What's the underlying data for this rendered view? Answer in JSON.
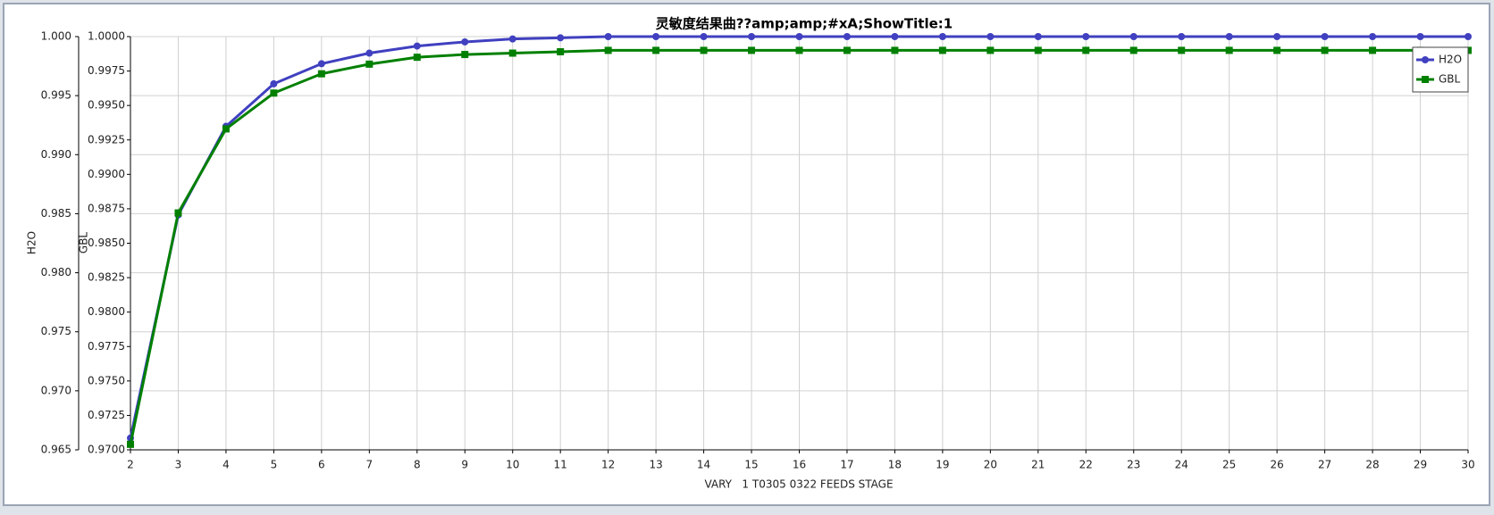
{
  "chart_data": {
    "type": "line",
    "title": "灵敏度结果曲??amp;amp;#xA;ShowTitle:1",
    "x_label": "VARY   1 T0305 0322 FEEDS STAGE",
    "y_label": "H2O",
    "y2_label": "GBL",
    "x": [
      2,
      3,
      4,
      5,
      6,
      7,
      8,
      9,
      10,
      11,
      12,
      13,
      14,
      15,
      16,
      17,
      18,
      19,
      20,
      21,
      22,
      23,
      24,
      25,
      26,
      27,
      28,
      29,
      30
    ],
    "xlim": [
      2,
      30
    ],
    "xticks": [
      2,
      3,
      4,
      5,
      6,
      7,
      8,
      9,
      10,
      11,
      12,
      13,
      14,
      15,
      16,
      17,
      18,
      19,
      20,
      21,
      22,
      23,
      24,
      25,
      26,
      27,
      28,
      29,
      30
    ],
    "ylim": [
      0.965,
      1.0
    ],
    "yticks": [
      {
        "value": 0.965,
        "label": "0.965"
      },
      {
        "value": 0.97,
        "label": "0.970"
      },
      {
        "value": 0.975,
        "label": "0.975"
      },
      {
        "value": 0.98,
        "label": "0.980"
      },
      {
        "value": 0.985,
        "label": "0.985"
      },
      {
        "value": 0.99,
        "label": "0.990"
      },
      {
        "value": 0.995,
        "label": "0.995"
      },
      {
        "value": 1.0,
        "label": "1.000"
      }
    ],
    "y2lim": [
      0.97,
      1.0
    ],
    "y2ticks": [
      {
        "value": 0.97,
        "label": "0.9700"
      },
      {
        "value": 0.9725,
        "label": "0.9725"
      },
      {
        "value": 0.975,
        "label": "0.9750"
      },
      {
        "value": 0.9775,
        "label": "0.9775"
      },
      {
        "value": 0.98,
        "label": "0.9800"
      },
      {
        "value": 0.9825,
        "label": "0.9825"
      },
      {
        "value": 0.985,
        "label": "0.9850"
      },
      {
        "value": 0.9875,
        "label": "0.9875"
      },
      {
        "value": 0.99,
        "label": "0.9900"
      },
      {
        "value": 0.9925,
        "label": "0.9925"
      },
      {
        "value": 0.995,
        "label": "0.9950"
      },
      {
        "value": 0.9975,
        "label": "0.9975"
      },
      {
        "value": 1.0,
        "label": "1.0000"
      }
    ],
    "grid": true,
    "legend": "top-right",
    "series": [
      {
        "name": "H2O",
        "color": "#4040c0",
        "marker": "circle",
        "axis": "y",
        "values": [
          0.966,
          0.9849,
          0.9924,
          0.996,
          0.9977,
          0.9986,
          0.9992,
          0.99955,
          0.9998,
          0.9999,
          1.0,
          1.0,
          1.0,
          1.0,
          1.0,
          1.0,
          1.0,
          1.0,
          1.0,
          1.0,
          1.0,
          1.0,
          1.0,
          1.0,
          1.0,
          1.0,
          1.0,
          1.0,
          1.0
        ]
      },
      {
        "name": "GBL",
        "color": "#008000",
        "marker": "square",
        "axis": "y2",
        "values": [
          0.9704,
          0.9872,
          0.9933,
          0.9959,
          0.9973,
          0.998,
          0.9985,
          0.9987,
          0.9988,
          0.9989,
          0.999,
          0.999,
          0.999,
          0.999,
          0.999,
          0.999,
          0.999,
          0.999,
          0.999,
          0.999,
          0.999,
          0.999,
          0.999,
          0.999,
          0.999,
          0.999,
          0.999,
          0.999,
          0.999
        ]
      }
    ]
  }
}
